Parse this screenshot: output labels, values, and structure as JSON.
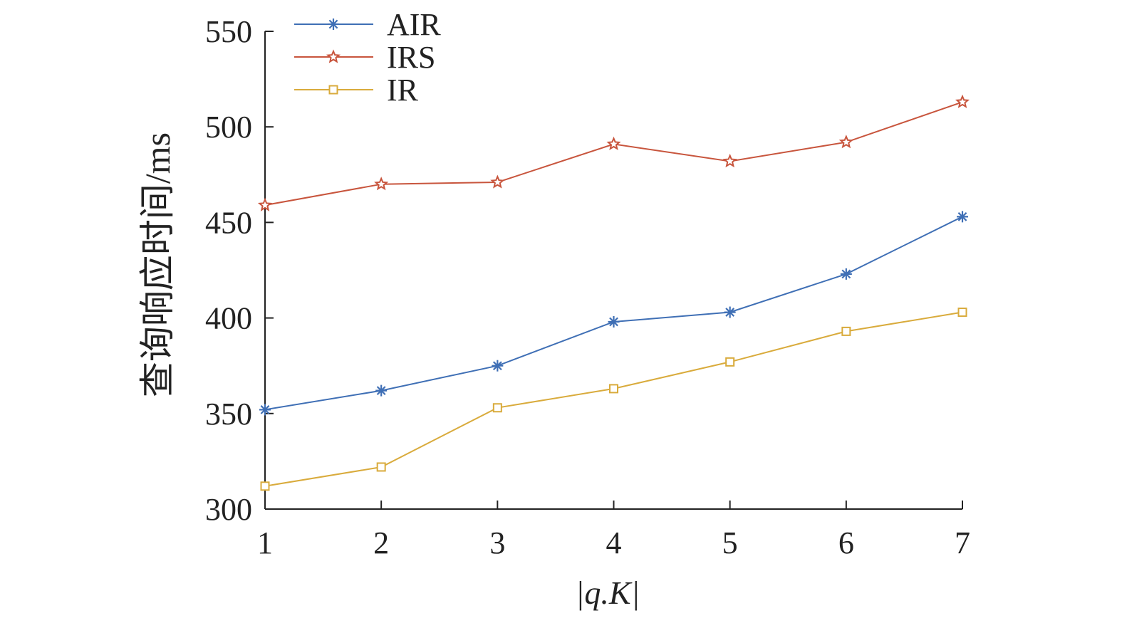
{
  "chart_data": {
    "type": "line",
    "title": "",
    "xlabel": "|q.K|",
    "ylabel": "查询响应时间/ms",
    "x": [
      1,
      2,
      3,
      4,
      5,
      6,
      7
    ],
    "xticks": [
      "1",
      "2",
      "3",
      "4",
      "5",
      "6",
      "7"
    ],
    "xlim": [
      1,
      7
    ],
    "ylim": [
      300,
      550
    ],
    "yticks": [
      "300",
      "350",
      "400",
      "450",
      "500",
      "550"
    ],
    "grid": false,
    "legend_position": "top-left",
    "series": [
      {
        "name": "AIR",
        "marker": "asterisk",
        "color": "#3f6fb5",
        "values": [
          352,
          362,
          375,
          398,
          403,
          423,
          453
        ]
      },
      {
        "name": "IRS",
        "marker": "star",
        "color": "#c8553d",
        "values": [
          459,
          470,
          471,
          491,
          482,
          492,
          513
        ]
      },
      {
        "name": "IR",
        "marker": "square",
        "color": "#d9ab3c",
        "values": [
          312,
          322,
          353,
          363,
          377,
          393,
          403
        ]
      }
    ]
  }
}
